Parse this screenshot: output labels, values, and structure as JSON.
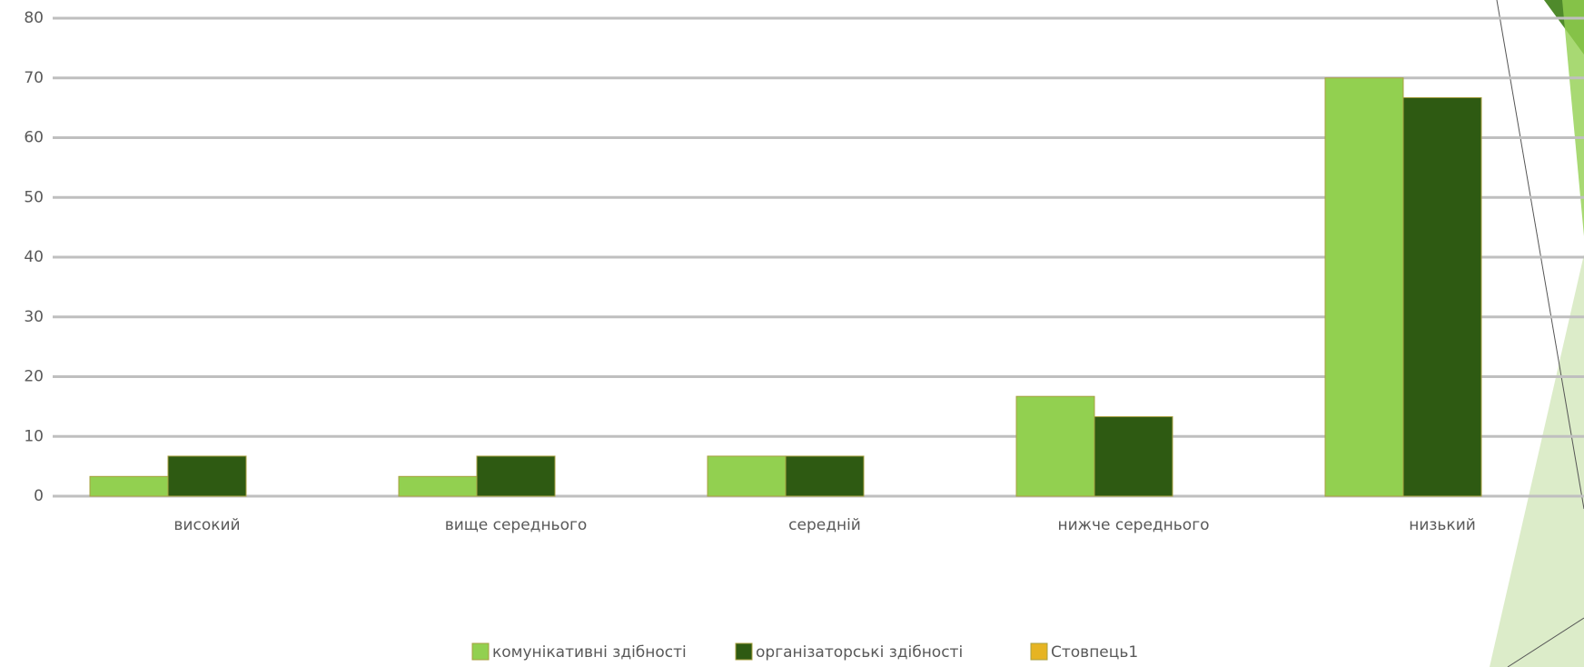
{
  "chart_data": {
    "type": "bar",
    "categories": [
      "високий",
      "вище середнього",
      "середній",
      "нижче середнього",
      "низький"
    ],
    "series": [
      {
        "name": "комунікативні здібності",
        "color": "#92d050",
        "values": [
          3.3,
          3.3,
          6.7,
          16.7,
          70
        ]
      },
      {
        "name": "організаторські здібності",
        "color": "#2e5a12",
        "values": [
          6.7,
          6.7,
          6.7,
          13.3,
          66.7
        ]
      },
      {
        "name": "Стовпець1",
        "color": "#e6b422",
        "values": [
          null,
          null,
          null,
          null,
          null
        ]
      }
    ],
    "ylim": [
      0,
      80
    ],
    "yticks": [
      0,
      10,
      20,
      30,
      40,
      50,
      60,
      70,
      80
    ],
    "grid": true
  }
}
